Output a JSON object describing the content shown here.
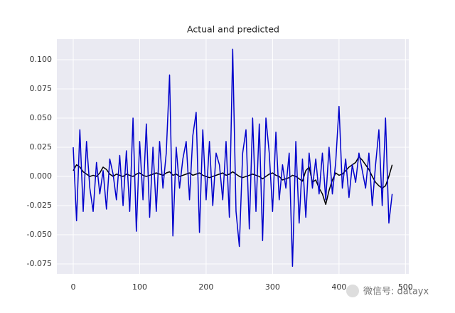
{
  "chart_data": {
    "type": "line",
    "title": "Actual and predicted",
    "x": [
      0,
      5,
      10,
      15,
      20,
      25,
      30,
      35,
      40,
      45,
      50,
      55,
      60,
      65,
      70,
      75,
      80,
      85,
      90,
      95,
      100,
      105,
      110,
      115,
      120,
      125,
      130,
      135,
      140,
      145,
      150,
      155,
      160,
      165,
      170,
      175,
      180,
      185,
      190,
      195,
      200,
      205,
      210,
      215,
      220,
      225,
      230,
      235,
      240,
      245,
      250,
      255,
      260,
      265,
      270,
      275,
      280,
      285,
      290,
      295,
      300,
      305,
      310,
      315,
      320,
      325,
      330,
      335,
      340,
      345,
      350,
      355,
      360,
      365,
      370,
      375,
      380,
      385,
      390,
      395,
      400,
      405,
      410,
      415,
      420,
      425,
      430,
      435,
      440,
      445,
      450,
      455,
      460,
      465,
      470,
      475,
      480
    ],
    "series": [
      {
        "color": "#000000",
        "values": [
          0.005,
          0.01,
          0.008,
          0.004,
          0.002,
          0.0,
          0.001,
          0.0,
          0.003,
          0.008,
          0.006,
          0.002,
          0.0,
          0.002,
          0.001,
          0.0,
          0.002,
          0.001,
          0.0,
          0.002,
          0.003,
          0.001,
          0.0,
          0.001,
          0.002,
          0.003,
          0.002,
          0.001,
          0.003,
          0.004,
          0.001,
          0.002,
          0.0,
          0.001,
          0.002,
          0.003,
          0.001,
          0.002,
          0.003,
          0.001,
          0.0,
          -0.001,
          0.0,
          0.001,
          0.002,
          0.003,
          0.001,
          0.002,
          0.004,
          0.002,
          0.0,
          -0.001,
          0.0,
          0.001,
          0.002,
          0.001,
          0.0,
          -0.002,
          0.0,
          0.002,
          0.003,
          0.001,
          0.0,
          -0.003,
          -0.002,
          -0.001,
          0.001,
          0.0,
          -0.002,
          -0.004,
          0.005,
          0.008,
          -0.005,
          -0.003,
          -0.01,
          -0.015,
          -0.024,
          -0.012,
          -0.003,
          0.003,
          0.001,
          0.002,
          0.005,
          0.008,
          0.01,
          0.012,
          0.017,
          0.014,
          0.01,
          0.006,
          0.0,
          -0.005,
          -0.008,
          -0.01,
          -0.008,
          0.0,
          0.01
        ]
      },
      {
        "color": "#0000cc",
        "values": [
          0.025,
          -0.038,
          0.04,
          -0.03,
          0.03,
          -0.01,
          -0.03,
          0.012,
          -0.015,
          0.005,
          -0.028,
          0.015,
          0.002,
          -0.02,
          0.018,
          -0.025,
          0.022,
          -0.03,
          0.05,
          -0.047,
          0.03,
          -0.02,
          0.045,
          -0.035,
          0.025,
          -0.03,
          0.03,
          -0.01,
          0.02,
          0.087,
          -0.051,
          0.025,
          -0.01,
          0.015,
          0.03,
          -0.02,
          0.035,
          0.055,
          -0.048,
          0.04,
          -0.02,
          0.03,
          -0.025,
          0.02,
          0.01,
          -0.02,
          0.03,
          -0.035,
          0.109,
          -0.03,
          -0.06,
          0.02,
          0.04,
          -0.045,
          0.05,
          -0.03,
          0.045,
          -0.055,
          0.05,
          0.02,
          -0.03,
          0.038,
          -0.02,
          0.01,
          -0.01,
          0.02,
          -0.077,
          0.03,
          -0.04,
          0.015,
          -0.035,
          0.02,
          -0.01,
          0.015,
          -0.015,
          0.02,
          -0.02,
          0.025,
          -0.015,
          0.012,
          0.06,
          -0.01,
          0.015,
          -0.018,
          0.01,
          -0.005,
          0.02,
          0.005,
          -0.01,
          0.02,
          -0.025,
          0.01,
          0.04,
          -0.025,
          0.05,
          -0.04,
          -0.015
        ]
      }
    ],
    "xlim": [
      -24.6,
      505
    ],
    "ylim": [
      -0.0835,
      0.1177
    ],
    "xticks": [
      0,
      100,
      200,
      300,
      400,
      500
    ],
    "yticks": [
      {
        "value": -0.075,
        "label": "-0.075"
      },
      {
        "value": -0.05,
        "label": "-0.050"
      },
      {
        "value": -0.025,
        "label": "-0.025"
      },
      {
        "value": 0,
        "label": "0.000"
      },
      {
        "value": 0.025,
        "label": "0.025"
      },
      {
        "value": 0.05,
        "label": "0.050"
      },
      {
        "value": 0.075,
        "label": "0.075"
      },
      {
        "value": 0.1,
        "label": "0.100"
      }
    ],
    "grid": true,
    "watermark": "微信号: datayx"
  }
}
